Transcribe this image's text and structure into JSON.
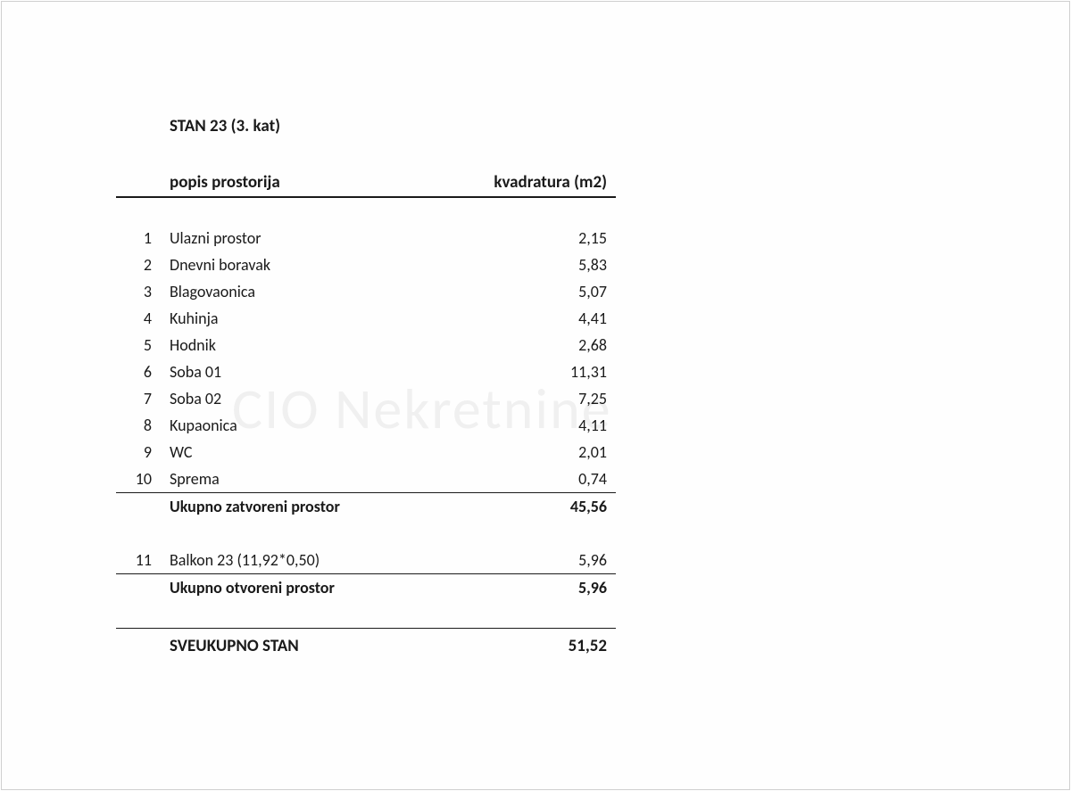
{
  "document": {
    "title": "STAN 23 (3. kat)",
    "watermark": "CIO Nekretnine",
    "table": {
      "headers": {
        "name": "popis prostorija",
        "area": "kvadratura (m2)"
      },
      "closed_rows": [
        {
          "num": "1",
          "name": "Ulazni prostor",
          "area": "2,15"
        },
        {
          "num": "2",
          "name": "Dnevni boravak",
          "area": "5,83"
        },
        {
          "num": "3",
          "name": "Blagovaonica",
          "area": "5,07"
        },
        {
          "num": "4",
          "name": "Kuhinja",
          "area": "4,41"
        },
        {
          "num": "5",
          "name": "Hodnik",
          "area": "2,68"
        },
        {
          "num": "6",
          "name": "Soba 01",
          "area": "11,31"
        },
        {
          "num": "7",
          "name": "Soba 02",
          "area": "7,25"
        },
        {
          "num": "8",
          "name": "Kupaonica",
          "area": "4,11"
        },
        {
          "num": "9",
          "name": "WC",
          "area": "2,01"
        },
        {
          "num": "10",
          "name": "Sprema",
          "area": "0,74"
        }
      ],
      "closed_subtotal": {
        "label": "Ukupno zatvoreni prostor",
        "area": "45,56"
      },
      "open_rows": [
        {
          "num": "11",
          "name": "Balkon 23 (11,92*0,50)",
          "area": "5,96"
        }
      ],
      "open_subtotal": {
        "label": "Ukupno otvoreni prostor",
        "area": "5,96"
      },
      "total": {
        "label": "SVEUKUPNO STAN",
        "area": "51,52"
      }
    },
    "styling": {
      "background_color": "#fefefe",
      "text_color": "#1a1a1a",
      "border_color": "#1a1a1a",
      "watermark_color": "rgba(200, 200, 200, 0.25)",
      "title_fontsize": 19,
      "header_fontsize": 19,
      "row_fontsize": 18,
      "font_family": "Calibri, Arial, sans-serif",
      "col_num_width": 60,
      "col_area_width": 160,
      "content_width": 560
    }
  }
}
